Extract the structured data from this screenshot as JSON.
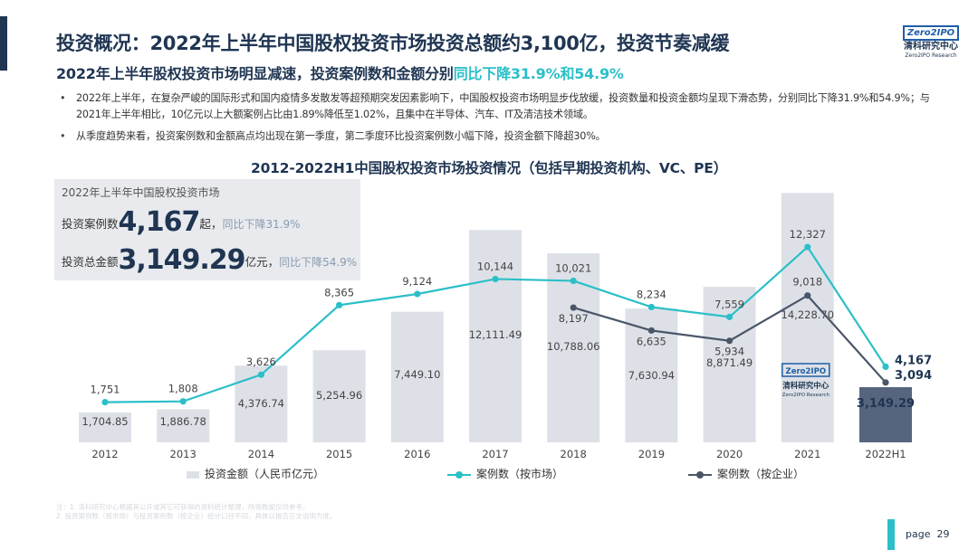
{
  "header": {
    "title": "投资概况：2022年上半年中国股权投资市场投资总额约3,100亿，投资节奏减缓",
    "subtitle_main": "2022年上半年股权投资市场明显减速，投资案例数和金额分别",
    "subtitle_highlight": "同比下降31.9%和54.9%"
  },
  "logo": {
    "badge": "Zero2IPO",
    "name_cn": "清科研究中心",
    "name_en": "Zero2IPO Research"
  },
  "bullets": [
    "2022年上半年，在复杂严峻的国际形式和国内疫情多发散发等超预期突发因素影响下，中国股权投资市场明显步伐放缓，投资数量和投资金额均呈现下滑态势，分别同比下降31.9%和54.9%；与2021年上半年相比，10亿元以上大额案例占比由1.89%降低至1.02%，且集中在半导体、汽车、IT及清洁技术领域。",
    "从季度趋势来看，投资案例数和金额高点均出现在第一季度，第二季度环比投资案例数小幅下降，投资金额下降超30%。"
  ],
  "summary": {
    "heading": "2022年上半年中国股权投资市场",
    "cases_label": "投资案例数",
    "cases_value": "4,167",
    "cases_unit": "起，",
    "cases_yoy": "同比下降31.9%",
    "amount_label": "投资总金额",
    "amount_value": "3,149.29",
    "amount_unit": "亿元，",
    "amount_yoy": "同比下降54.9%"
  },
  "chart_data": {
    "type": "bar",
    "title": "2012-2022H1中国股权投资市场投资情况（包括早期投资机构、VC、PE）",
    "categories": [
      "2012",
      "2013",
      "2014",
      "2015",
      "2016",
      "2017",
      "2018",
      "2019",
      "2020",
      "2021",
      "2022H1"
    ],
    "series": [
      {
        "name": "投资金额（人民币亿元）",
        "type": "bar",
        "values": [
          1704.85,
          1886.78,
          4376.74,
          5254.96,
          7449.1,
          12111.49,
          10788.06,
          7630.94,
          8871.49,
          14228.7,
          3149.29
        ],
        "labels": [
          "1,704.85",
          "1,886.78",
          "4,376.74",
          "5,254.96",
          "7,449.10",
          "12,111.49",
          "10,788.06",
          "7,630.94",
          "8,871.49",
          "14,228.70",
          "3,149.29"
        ]
      },
      {
        "name": "案例数（按市场）",
        "type": "line",
        "values": [
          1751,
          1808,
          3626,
          8365,
          9124,
          10144,
          10021,
          8234,
          7559,
          12327,
          4167
        ],
        "labels": [
          "1,751",
          "1,808",
          "3,626",
          "8,365",
          "9,124",
          "10,144",
          "10,021",
          "8,234",
          "7,559",
          "12,327",
          "4,167"
        ]
      },
      {
        "name": "案例数（按企业）",
        "type": "line",
        "values": [
          null,
          null,
          null,
          null,
          null,
          null,
          8197,
          6635,
          5934,
          9018,
          3094
        ],
        "labels": [
          "",
          "",
          "",
          "",
          "",
          "",
          "8,197",
          "6,635",
          "5,934",
          "9,018",
          "3,094"
        ]
      }
    ],
    "bar_ylim": [
      0,
      14500
    ],
    "line_ylim": [
      0,
      12700
    ],
    "legend": "bottom",
    "grid": false
  },
  "colors": {
    "bar": "#dde1e7",
    "bar_highlight": "#56657d",
    "line_market": "#2bbfc8",
    "line_company": "#4a5668",
    "title": "#1f3552"
  },
  "notes": [
    "注：1. 清科研究中心根据其公开或其它可获得的资料统计整理，所得数据仅供参考。",
    "2. 投资案例数（按市场）与投资案例数（按企业）统计口径不同，具体以报告正文说明为准。"
  ],
  "page": {
    "label": "page",
    "number": "29"
  }
}
